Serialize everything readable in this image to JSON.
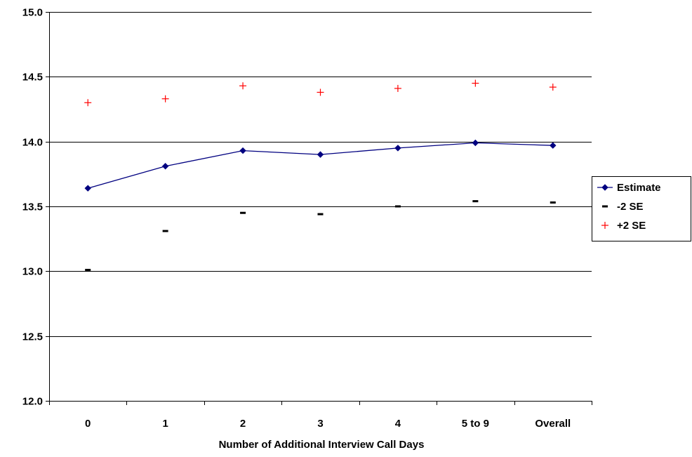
{
  "chart_data": {
    "type": "line",
    "title": "",
    "xlabel": "Number of Additional Interview Call Days",
    "ylabel": "",
    "categories": [
      "0",
      "1",
      "2",
      "3",
      "4",
      "5 to 9",
      "Overall"
    ],
    "ylim": [
      12.0,
      15.0
    ],
    "yticks": [
      "12.0",
      "12.5",
      "13.0",
      "13.5",
      "14.0",
      "14.5",
      "15.0"
    ],
    "yticks_values": [
      12.0,
      12.5,
      13.0,
      13.5,
      14.0,
      14.5,
      15.0
    ],
    "grid": "horizontal",
    "legend_position": "right",
    "series": [
      {
        "name": "Estimate",
        "values": [
          13.64,
          13.81,
          13.93,
          13.9,
          13.95,
          13.99,
          13.97
        ],
        "color": "#000080",
        "marker": "diamond",
        "line": true
      },
      {
        "name": "-2 SE",
        "values": [
          13.01,
          13.31,
          13.45,
          13.44,
          13.5,
          13.54,
          13.53
        ],
        "color": "#000000",
        "marker": "dash",
        "line": false
      },
      {
        "name": "+2 SE",
        "values": [
          14.3,
          14.33,
          14.43,
          14.38,
          14.41,
          14.45,
          14.42
        ],
        "color": "#ff0000",
        "marker": "plus",
        "line": false
      }
    ]
  }
}
